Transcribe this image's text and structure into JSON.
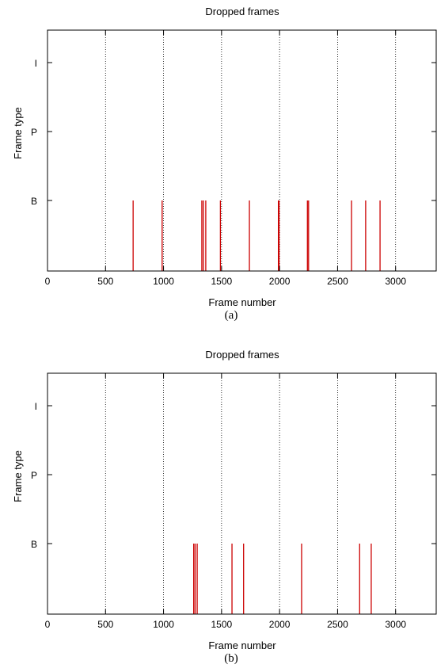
{
  "chart_data": [
    {
      "type": "bar",
      "title": "Dropped frames",
      "xlabel": "Frame number",
      "ylabel": "Frame type",
      "caption": "(a)",
      "xlim": [
        0,
        3350
      ],
      "xticks": [
        "0",
        "500",
        "1000",
        "1500",
        "2000",
        "2500",
        "3000"
      ],
      "yticks": [
        "I",
        "P",
        "B"
      ],
      "grid": "vertical dotted lines at x ticks",
      "series_color": "#cc0000",
      "x": [
        738,
        988,
        1330,
        1343,
        1364,
        1490,
        1740,
        1990,
        1996,
        2240,
        2250,
        2620,
        2742,
        2866
      ],
      "y": [
        "B",
        "B",
        "B",
        "B",
        "B",
        "B",
        "B",
        "B",
        "B",
        "B",
        "B",
        "B",
        "B",
        "B"
      ]
    },
    {
      "type": "bar",
      "title": "Dropped frames",
      "xlabel": "Frame number",
      "ylabel": "Frame type",
      "caption": "(b)",
      "xlim": [
        0,
        3350
      ],
      "xticks": [
        "0",
        "500",
        "1000",
        "1500",
        "2000",
        "2500",
        "3000"
      ],
      "yticks": [
        "I",
        "P",
        "B"
      ],
      "grid": "vertical dotted lines at x ticks",
      "series_color": "#cc0000",
      "x": [
        1260,
        1272,
        1290,
        1590,
        1690,
        2190,
        2690,
        2790
      ],
      "y": [
        "B",
        "B",
        "B",
        "B",
        "B",
        "B",
        "B",
        "B"
      ]
    }
  ]
}
